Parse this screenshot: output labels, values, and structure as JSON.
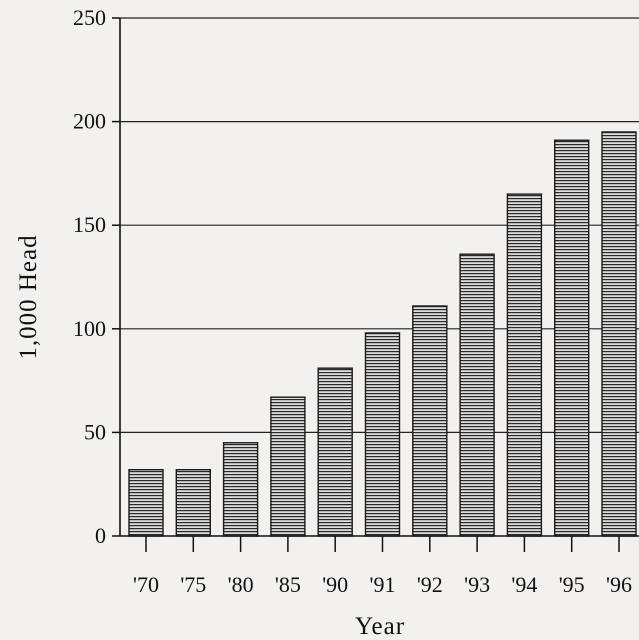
{
  "chart_data": {
    "type": "bar",
    "title": "",
    "xlabel": "Year",
    "ylabel": "1,000 Head",
    "categories": [
      "'70",
      "'75",
      "'80",
      "'85",
      "'90",
      "'91",
      "'92",
      "'93",
      "'94",
      "'95",
      "'96"
    ],
    "values": [
      32,
      32,
      45,
      67,
      81,
      98,
      111,
      136,
      165,
      191,
      195
    ],
    "ylim": [
      0,
      250
    ],
    "yticks": [
      0,
      50,
      100,
      150,
      200,
      250
    ],
    "grid": true,
    "legend": "none",
    "colors": {
      "bar_line": "#2a2a2a",
      "bar_fill": "#d8d8d8",
      "axis": "#111111",
      "background": "#f3f1f0"
    }
  }
}
